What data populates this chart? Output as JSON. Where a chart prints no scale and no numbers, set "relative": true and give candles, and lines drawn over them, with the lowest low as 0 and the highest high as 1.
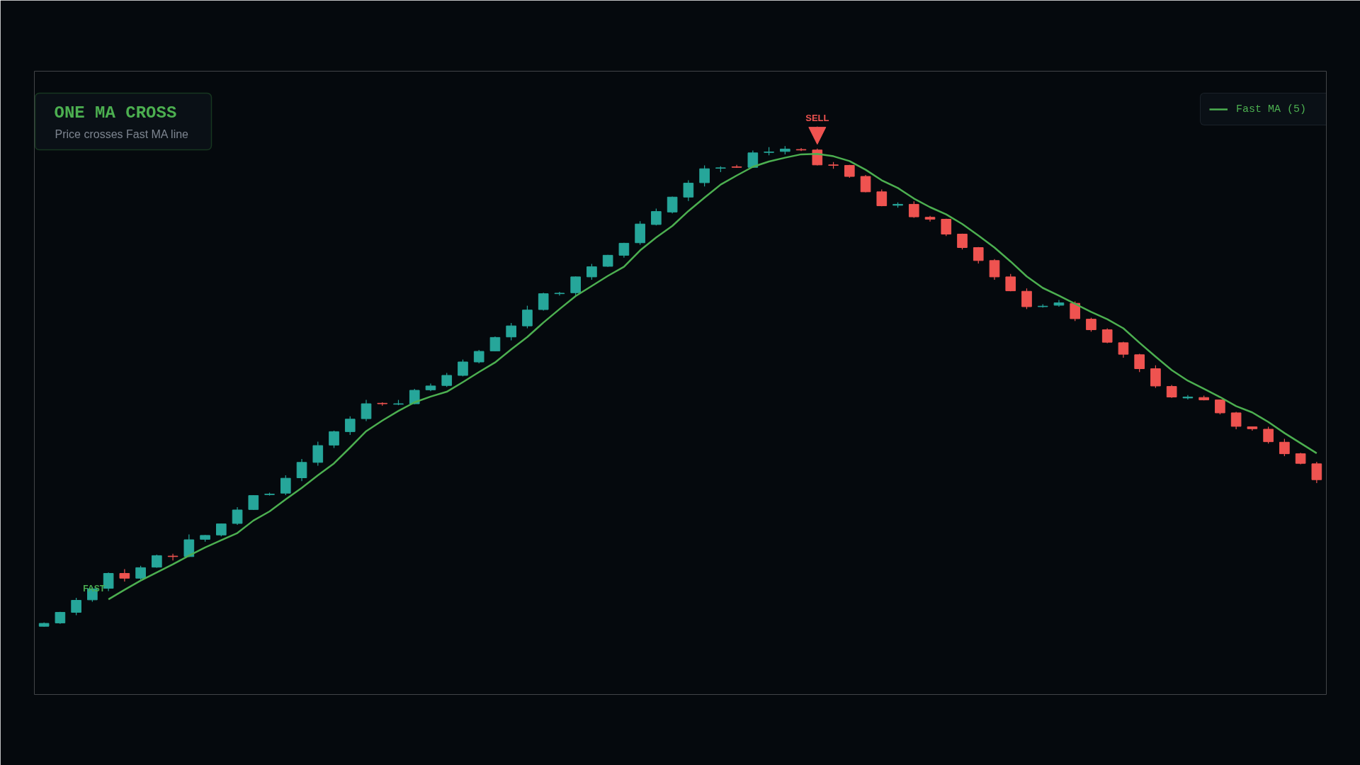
{
  "chart_data": {
    "type": "candlestick",
    "title": "ONE MA CROSS",
    "subtitle": "Price crosses Fast MA line",
    "relative": true,
    "tick_labels": false,
    "legend": "top right",
    "annotations": [
      "FAST",
      "SELL"
    ],
    "categories": [
      null,
      null,
      null,
      null,
      null,
      null,
      null,
      null,
      null,
      null,
      null,
      null,
      null,
      null,
      null,
      null,
      null,
      null,
      null,
      null,
      null,
      null,
      null,
      null,
      null,
      null,
      null,
      null,
      null,
      null,
      null,
      null,
      null,
      null,
      null,
      null,
      null,
      null,
      null,
      null,
      null,
      null,
      null,
      null,
      null,
      null,
      null,
      null,
      null,
      null,
      null,
      null,
      null,
      null,
      null,
      null,
      null,
      null,
      null,
      null,
      null,
      null,
      null,
      null,
      null,
      null,
      null,
      null,
      null,
      null,
      null,
      null,
      null,
      null,
      null,
      null,
      null,
      null,
      null,
      null
    ],
    "ohlc": [
      [
        0.001,
        0.009,
        0.0,
        0.007
      ],
      [
        0.008,
        0.031,
        0.006,
        0.03
      ],
      [
        0.03,
        0.06,
        0.024,
        0.055
      ],
      [
        0.056,
        0.083,
        0.052,
        0.079
      ],
      [
        0.08,
        0.113,
        0.074,
        0.111
      ],
      [
        0.111,
        0.12,
        0.094,
        0.101
      ],
      [
        0.101,
        0.127,
        0.098,
        0.123
      ],
      [
        0.124,
        0.15,
        0.123,
        0.148
      ],
      [
        0.147,
        0.152,
        0.138,
        0.146
      ],
      [
        0.146,
        0.192,
        0.145,
        0.181
      ],
      [
        0.182,
        0.191,
        0.177,
        0.19
      ],
      [
        0.191,
        0.215,
        0.188,
        0.214
      ],
      [
        0.215,
        0.249,
        0.212,
        0.243
      ],
      [
        0.244,
        0.274,
        0.243,
        0.273
      ],
      [
        0.275,
        0.279,
        0.273,
        0.276
      ],
      [
        0.278,
        0.315,
        0.274,
        0.309
      ],
      [
        0.31,
        0.349,
        0.303,
        0.342
      ],
      [
        0.342,
        0.385,
        0.335,
        0.377
      ],
      [
        0.378,
        0.408,
        0.372,
        0.406
      ],
      [
        0.406,
        0.438,
        0.399,
        0.432
      ],
      [
        0.433,
        0.472,
        0.428,
        0.464
      ],
      [
        0.465,
        0.467,
        0.46,
        0.464
      ],
      [
        0.463,
        0.472,
        0.461,
        0.464
      ],
      [
        0.464,
        0.495,
        0.463,
        0.492
      ],
      [
        0.493,
        0.506,
        0.49,
        0.501
      ],
      [
        0.502,
        0.528,
        0.499,
        0.523
      ],
      [
        0.523,
        0.556,
        0.521,
        0.551
      ],
      [
        0.551,
        0.576,
        0.548,
        0.573
      ],
      [
        0.574,
        0.604,
        0.573,
        0.602
      ],
      [
        0.603,
        0.632,
        0.596,
        0.626
      ],
      [
        0.626,
        0.668,
        0.621,
        0.659
      ],
      [
        0.66,
        0.695,
        0.658,
        0.693
      ],
      [
        0.693,
        0.697,
        0.689,
        0.694
      ],
      [
        0.695,
        0.729,
        0.689,
        0.728
      ],
      [
        0.728,
        0.755,
        0.722,
        0.749
      ],
      [
        0.75,
        0.774,
        0.749,
        0.773
      ],
      [
        0.773,
        0.799,
        0.768,
        0.798
      ],
      [
        0.799,
        0.844,
        0.795,
        0.838
      ],
      [
        0.837,
        0.87,
        0.835,
        0.864
      ],
      [
        0.863,
        0.895,
        0.86,
        0.894
      ],
      [
        0.894,
        0.929,
        0.886,
        0.923
      ],
      [
        0.924,
        0.96,
        0.916,
        0.953
      ],
      [
        0.954,
        0.958,
        0.946,
        0.955
      ],
      [
        0.957,
        0.961,
        0.955,
        0.956
      ],
      [
        0.956,
        0.991,
        0.955,
        0.986
      ],
      [
        0.987,
        0.998,
        0.981,
        0.988
      ],
      [
        0.989,
        1.0,
        0.983,
        0.994
      ],
      [
        0.993,
        0.996,
        0.99,
        0.992
      ],
      [
        0.992,
        0.995,
        0.96,
        0.961
      ],
      [
        0.961,
        0.967,
        0.953,
        0.96
      ],
      [
        0.96,
        0.961,
        0.934,
        0.937
      ],
      [
        0.937,
        0.94,
        0.904,
        0.905
      ],
      [
        0.905,
        0.91,
        0.875,
        0.876
      ],
      [
        0.877,
        0.883,
        0.872,
        0.879
      ],
      [
        0.879,
        0.885,
        0.851,
        0.853
      ],
      [
        0.852,
        0.855,
        0.843,
        0.848
      ],
      [
        0.848,
        0.849,
        0.813,
        0.817
      ],
      [
        0.817,
        0.818,
        0.785,
        0.789
      ],
      [
        0.789,
        0.79,
        0.756,
        0.762
      ],
      [
        0.762,
        0.765,
        0.722,
        0.728
      ],
      [
        0.728,
        0.734,
        0.698,
        0.699
      ],
      [
        0.698,
        0.704,
        0.661,
        0.666
      ],
      [
        0.666,
        0.671,
        0.664,
        0.667
      ],
      [
        0.669,
        0.68,
        0.666,
        0.674
      ],
      [
        0.673,
        0.677,
        0.636,
        0.641
      ],
      [
        0.64,
        0.643,
        0.614,
        0.618
      ],
      [
        0.618,
        0.621,
        0.59,
        0.592
      ],
      [
        0.591,
        0.593,
        0.56,
        0.567
      ],
      [
        0.566,
        0.568,
        0.53,
        0.537
      ],
      [
        0.537,
        0.544,
        0.497,
        0.501
      ],
      [
        0.5,
        0.503,
        0.476,
        0.478
      ],
      [
        0.476,
        0.482,
        0.473,
        0.478
      ],
      [
        0.477,
        0.481,
        0.471,
        0.472
      ],
      [
        0.472,
        0.473,
        0.442,
        0.445
      ],
      [
        0.445,
        0.447,
        0.411,
        0.417
      ],
      [
        0.416,
        0.417,
        0.408,
        0.412
      ],
      [
        0.411,
        0.416,
        0.381,
        0.385
      ],
      [
        0.384,
        0.391,
        0.355,
        0.36
      ],
      [
        0.36,
        0.362,
        0.338,
        0.34
      ],
      [
        0.339,
        0.343,
        0.299,
        0.306
      ]
    ],
    "colors": [
      "#26a69a",
      "#26a69a",
      "#26a69a",
      "#26a69a",
      "#26a69a",
      "#ef5350",
      "#26a69a",
      "#26a69a",
      "#ef5350",
      "#26a69a",
      "#26a69a",
      "#26a69a",
      "#26a69a",
      "#26a69a",
      "#26a69a",
      "#26a69a",
      "#26a69a",
      "#26a69a",
      "#26a69a",
      "#26a69a",
      "#26a69a",
      "#ef5350",
      "#26a69a",
      "#26a69a",
      "#26a69a",
      "#26a69a",
      "#26a69a",
      "#26a69a",
      "#26a69a",
      "#26a69a",
      "#26a69a",
      "#26a69a",
      "#26a69a",
      "#26a69a",
      "#26a69a",
      "#26a69a",
      "#26a69a",
      "#26a69a",
      "#26a69a",
      "#26a69a",
      "#26a69a",
      "#26a69a",
      "#26a69a",
      "#ef5350",
      "#26a69a",
      "#26a69a",
      "#26a69a",
      "#ef5350",
      "#ef5350",
      "#ef5350",
      "#ef5350",
      "#ef5350",
      "#ef5350",
      "#26a69a",
      "#ef5350",
      "#ef5350",
      "#ef5350",
      "#ef5350",
      "#ef5350",
      "#ef5350",
      "#ef5350",
      "#ef5350",
      "#26a69a",
      "#26a69a",
      "#ef5350",
      "#ef5350",
      "#ef5350",
      "#ef5350",
      "#ef5350",
      "#ef5350",
      "#ef5350",
      "#26a69a",
      "#ef5350",
      "#ef5350",
      "#ef5350",
      "#ef5350",
      "#ef5350",
      "#ef5350",
      "#ef5350",
      "#ef5350"
    ],
    "series": [
      {
        "name": "Fast MA (5)",
        "type": "line",
        "color": "#4caf50",
        "values": [
          null,
          null,
          null,
          null,
          0.057,
          0.077,
          0.096,
          0.113,
          0.13,
          0.148,
          0.165,
          0.18,
          0.195,
          0.221,
          0.24,
          0.265,
          0.289,
          0.315,
          0.34,
          0.373,
          0.407,
          0.429,
          0.449,
          0.467,
          0.479,
          0.489,
          0.509,
          0.53,
          0.55,
          0.577,
          0.603,
          0.633,
          0.661,
          0.688,
          0.709,
          0.73,
          0.749,
          0.783,
          0.81,
          0.834,
          0.865,
          0.893,
          0.92,
          0.939,
          0.957,
          0.968,
          0.976,
          0.983,
          0.984,
          0.979,
          0.969,
          0.951,
          0.929,
          0.913,
          0.891,
          0.873,
          0.858,
          0.838,
          0.814,
          0.789,
          0.76,
          0.729,
          0.705,
          0.689,
          0.672,
          0.655,
          0.64,
          0.621,
          0.591,
          0.562,
          0.534,
          0.512,
          0.495,
          0.478,
          0.459,
          0.446,
          0.426,
          0.403,
          0.382,
          0.361
        ]
      }
    ]
  }
}
